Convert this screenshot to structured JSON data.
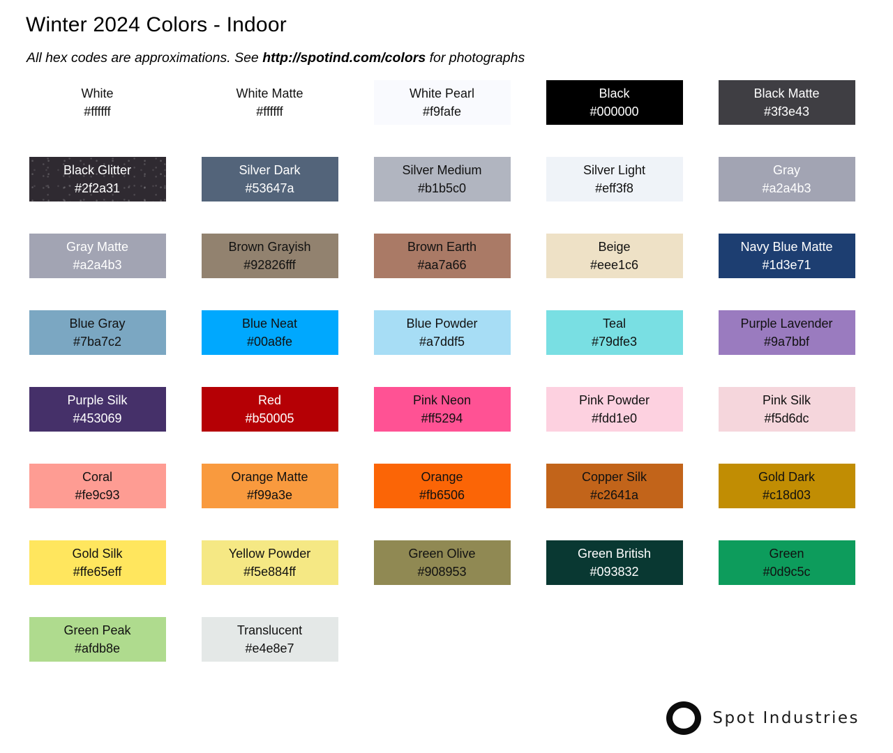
{
  "header": {
    "title": "Winter 2024 Colors - Indoor",
    "subtitle_prefix": "All hex codes are approximations. See ",
    "subtitle_link": "http://spotind.com/colors",
    "subtitle_suffix": " for photographs"
  },
  "palette": {
    "columns": 5,
    "swatches": [
      {
        "name": "White",
        "hex": "#ffffff",
        "fill": "#ffffff",
        "text": "dark",
        "glitter": false
      },
      {
        "name": "White Matte",
        "hex": "#ffffff",
        "fill": "#ffffff",
        "text": "dark",
        "glitter": false
      },
      {
        "name": "White Pearl",
        "hex": "#f9fafe",
        "fill": "#f9fafe",
        "text": "dark",
        "glitter": false
      },
      {
        "name": "Black",
        "hex": "#000000",
        "fill": "#000000",
        "text": "light",
        "glitter": false
      },
      {
        "name": "Black Matte",
        "hex": "#3f3e43",
        "fill": "#3f3e43",
        "text": "light",
        "glitter": false
      },
      {
        "name": "Black Glitter",
        "hex": "#2f2a31",
        "fill": "#2f2a31",
        "text": "light",
        "glitter": true
      },
      {
        "name": "Silver Dark",
        "hex": "#53647a",
        "fill": "#53647a",
        "text": "light",
        "glitter": false
      },
      {
        "name": "Silver Medium",
        "hex": "#b1b5c0",
        "fill": "#b1b5c0",
        "text": "dark",
        "glitter": false
      },
      {
        "name": "Silver Light",
        "hex": "#eff3f8",
        "fill": "#eff3f8",
        "text": "dark",
        "glitter": false
      },
      {
        "name": "Gray",
        "hex": "#a2a4b3",
        "fill": "#a2a4b3",
        "text": "light",
        "glitter": false
      },
      {
        "name": "Gray Matte",
        "hex": "#a2a4b3",
        "fill": "#a2a4b3",
        "text": "light",
        "glitter": false
      },
      {
        "name": "Brown Grayish",
        "hex": "#92826fff",
        "fill": "#92826f",
        "text": "dark",
        "glitter": false
      },
      {
        "name": "Brown Earth",
        "hex": "#aa7a66",
        "fill": "#aa7a66",
        "text": "dark",
        "glitter": false
      },
      {
        "name": "Beige",
        "hex": "#eee1c6",
        "fill": "#eee1c6",
        "text": "dark",
        "glitter": false
      },
      {
        "name": "Navy Blue Matte",
        "hex": "#1d3e71",
        "fill": "#1d3e71",
        "text": "light",
        "glitter": false
      },
      {
        "name": "Blue Gray",
        "hex": "#7ba7c2",
        "fill": "#7ba7c2",
        "text": "dark",
        "glitter": false
      },
      {
        "name": "Blue Neat",
        "hex": "#00a8fe",
        "fill": "#00a8fe",
        "text": "dark",
        "glitter": false
      },
      {
        "name": "Blue Powder",
        "hex": "#a7ddf5",
        "fill": "#a7ddf5",
        "text": "dark",
        "glitter": false
      },
      {
        "name": "Teal",
        "hex": "#79dfe3",
        "fill": "#79dfe3",
        "text": "dark",
        "glitter": false
      },
      {
        "name": "Purple Lavender",
        "hex": "#9a7bbf",
        "fill": "#9a7bbf",
        "text": "dark",
        "glitter": false
      },
      {
        "name": "Purple Silk",
        "hex": "#453069",
        "fill": "#453069",
        "text": "light",
        "glitter": false
      },
      {
        "name": "Red",
        "hex": "#b50005",
        "fill": "#b50005",
        "text": "light",
        "glitter": false
      },
      {
        "name": "Pink Neon",
        "hex": "#ff5294",
        "fill": "#ff5294",
        "text": "dark",
        "glitter": false
      },
      {
        "name": "Pink Powder",
        "hex": "#fdd1e0",
        "fill": "#fdd1e0",
        "text": "dark",
        "glitter": false
      },
      {
        "name": "Pink Silk",
        "hex": "#f5d6dc",
        "fill": "#f5d6dc",
        "text": "dark",
        "glitter": false
      },
      {
        "name": "Coral",
        "hex": "#fe9c93",
        "fill": "#fe9c93",
        "text": "dark",
        "glitter": false
      },
      {
        "name": "Orange Matte",
        "hex": "#f99a3e",
        "fill": "#f99a3e",
        "text": "dark",
        "glitter": false
      },
      {
        "name": "Orange",
        "hex": "#fb6506",
        "fill": "#fb6506",
        "text": "dark",
        "glitter": false
      },
      {
        "name": "Copper Silk",
        "hex": "#c2641a",
        "fill": "#c2641a",
        "text": "dark",
        "glitter": false
      },
      {
        "name": "Gold Dark",
        "hex": "#c18d03",
        "fill": "#c18d03",
        "text": "dark",
        "glitter": false
      },
      {
        "name": "Gold Silk",
        "hex": "#ffe65eff",
        "fill": "#ffe65e",
        "text": "dark",
        "glitter": false
      },
      {
        "name": "Yellow Powder",
        "hex": "#f5e884ff",
        "fill": "#f5e884",
        "text": "dark",
        "glitter": false
      },
      {
        "name": "Green Olive",
        "hex": "#908953",
        "fill": "#908953",
        "text": "dark",
        "glitter": false
      },
      {
        "name": "Green British",
        "hex": "#093832",
        "fill": "#093832",
        "text": "light",
        "glitter": false
      },
      {
        "name": "Green",
        "hex": "#0d9c5c",
        "fill": "#0d9c5c",
        "text": "dark",
        "glitter": false
      },
      {
        "name": "Green Peak",
        "hex": "#afdb8e",
        "fill": "#afdb8e",
        "text": "dark",
        "glitter": false
      },
      {
        "name": "Translucent",
        "hex": "#e4e8e7",
        "fill": "#e4e8e7",
        "text": "dark",
        "glitter": false
      }
    ]
  },
  "footer": {
    "brand": "Spot Industries"
  }
}
